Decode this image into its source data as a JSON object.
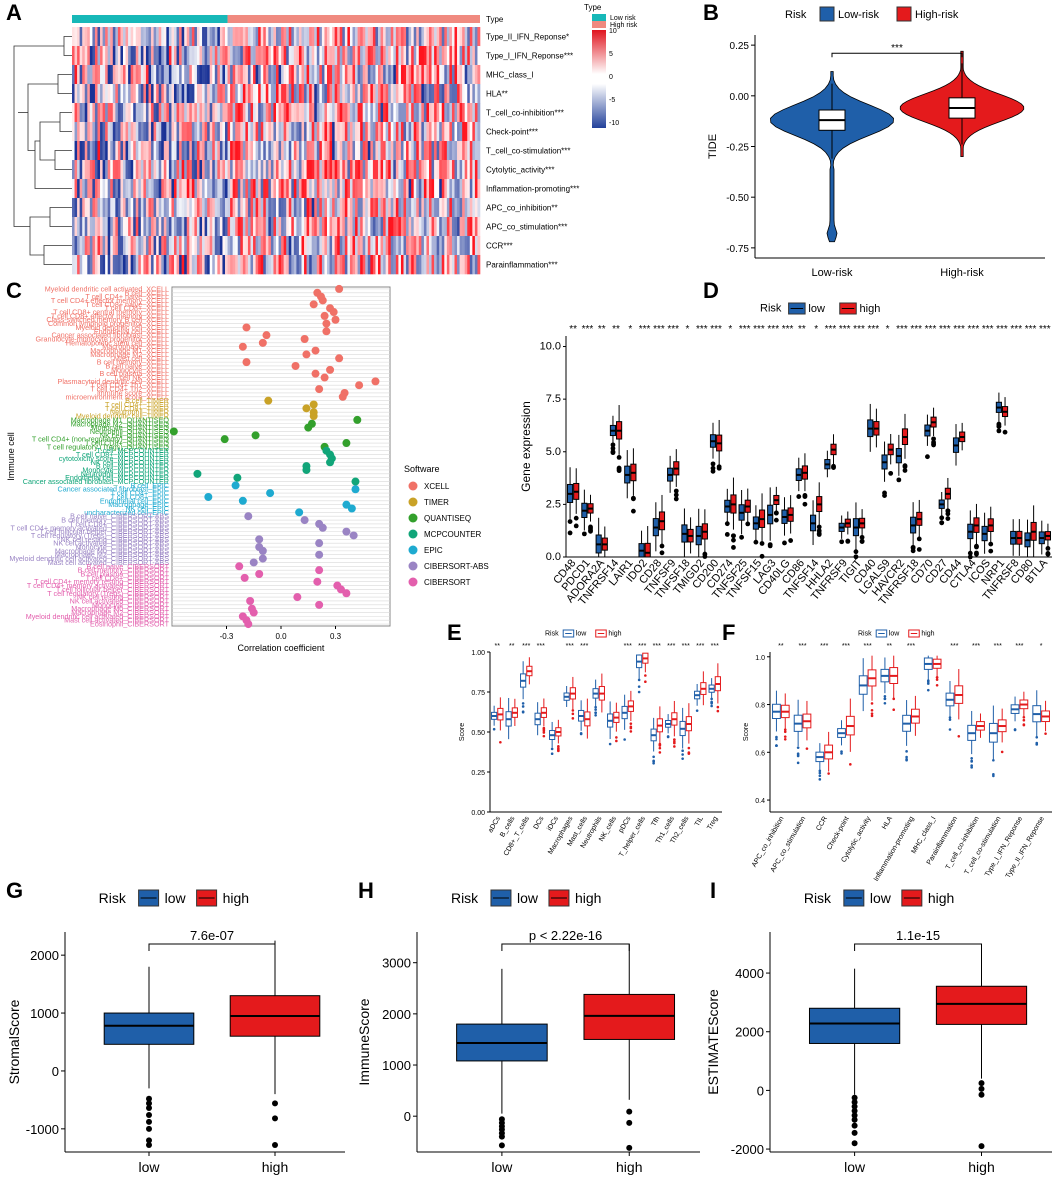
{
  "colors": {
    "low": "#1f5fa9",
    "high": "#e41a1c",
    "low_type": "#17b8b8",
    "high_type": "#f08a80",
    "xcell": "#f07167",
    "timer": "#c9a227",
    "quantiseq": "#33a02c",
    "mcpcounter": "#11a579",
    "epic": "#1eaad0",
    "cibersort_abs": "#9a84c4",
    "cibersort": "#e35fad"
  },
  "chart_data": [
    {
      "id": "A",
      "panel_label": "A",
      "type": "heatmap",
      "title": "",
      "annotation_label": "Type",
      "legend_title": "Type",
      "legend_entries": [
        "Low risk",
        "High risk"
      ],
      "colorbar_ticks": [
        "10",
        "5",
        "0",
        "-5",
        "-10"
      ],
      "colorbar_range": [
        -10,
        10
      ],
      "rows": [
        "Type_II_IFN_Reponse*",
        "Type_I_IFN_Reponse***",
        "MHC_class_I",
        "HLA**",
        "T_cell_co-inhibition***",
        "Check-point***",
        "T_cell_co-stimulation***",
        "Cytolytic_activity***",
        "Inflammation-promoting***",
        "APC_co_inhibition**",
        "APC_co_stimulation***",
        "CCR***",
        "Parainflammation***"
      ],
      "low_fraction": 0.38
    },
    {
      "id": "B",
      "panel_label": "B",
      "type": "violin",
      "legend_title": "Risk",
      "legend_entries": [
        "Low-risk",
        "High-risk"
      ],
      "categories": [
        "Low-risk",
        "High-risk"
      ],
      "ylabel": "TIDE",
      "ylim": [
        -0.8,
        0.3
      ],
      "yticks": [
        "0.25",
        "0.00",
        "-0.25",
        "-0.50",
        "-0.75"
      ],
      "significance": "***",
      "boxes": [
        {
          "name": "Low-risk",
          "q1": -0.17,
          "median": -0.12,
          "q3": -0.07,
          "wlo": -0.31,
          "whi": 0.06
        },
        {
          "name": "High-risk",
          "q1": -0.11,
          "median": -0.06,
          "q3": -0.01,
          "wlo": -0.24,
          "whi": 0.16
        }
      ]
    },
    {
      "id": "C",
      "panel_label": "C",
      "type": "scatter",
      "xlabel": "Correlation coefficient",
      "ylabel": "Immune cell",
      "xticks": [
        "-0.3",
        "0.0",
        "0.3"
      ],
      "xlim": [
        -0.6,
        0.6
      ],
      "legend_title": "Software",
      "software": [
        "XCELL",
        "TIMER",
        "QUANTISEQ",
        "MCPCOUNTER",
        "EPIC",
        "CIBERSORT-ABS",
        "CIBERSORT"
      ],
      "points": [
        [
          "Myeloid dendritic cell activated_XCELL",
          0,
          0.32
        ],
        [
          "B cell_XCELL",
          0,
          0.2
        ],
        [
          "T cell CD4+ naive_XCELL",
          0,
          0.22
        ],
        [
          "T cell CD4+ effector memory_XCELL",
          0,
          0.23
        ],
        [
          "T cell CD8+ naive_XCELL",
          0,
          0.18
        ],
        [
          "T cell CD8+_XCELL",
          0,
          0.27
        ],
        [
          "T cell CD8+ central memory_XCELL",
          0,
          0.29
        ],
        [
          "T cell CD8+ effector memory_XCELL",
          0,
          0.24
        ],
        [
          "Class-switched memory B cell_XCELL",
          0,
          0.3
        ],
        [
          "Common lymphoid progenitor_XCELL",
          0,
          0.25
        ],
        [
          "Myeloid dendritic cell_XCELL",
          0,
          -0.19
        ],
        [
          "Endothelial cell_XCELL",
          0,
          0.25
        ],
        [
          "Cancer associated fibroblast_XCELL",
          0,
          -0.08
        ],
        [
          "Granulocyte-monocyte progenitor_XCELL",
          0,
          0.13
        ],
        [
          "Hematopoietic stem cell_XCELL",
          0,
          -0.1
        ],
        [
          "Macrophage_XCELL",
          0,
          -0.21
        ],
        [
          "Macrophage M1_XCELL",
          0,
          0.19
        ],
        [
          "Macrophage M2_XCELL",
          0,
          0.14
        ],
        [
          "Mast cell_XCELL",
          0,
          0.32
        ],
        [
          "B cell memory_XCELL",
          0,
          -0.19
        ],
        [
          "B cell naive_XCELL",
          0,
          0.08
        ],
        [
          "Monocyte_XCELL",
          0,
          0.27
        ],
        [
          "B cell plasma_XCELL",
          0,
          0.19
        ],
        [
          "T cell NK_XCELL",
          0,
          0.24
        ],
        [
          "Plasmacytoid dendritic cell_XCELL",
          0,
          0.52
        ],
        [
          "T cell CD4+ Th1_XCELL",
          0,
          0.43
        ],
        [
          "T cell CD4+ Th2_XCELL",
          0,
          0.21
        ],
        [
          "immune score_XCELL",
          0,
          0.35
        ],
        [
          "microenvironment score_XCELL",
          0,
          0.34
        ],
        [
          "B cell_TIMER",
          1,
          -0.07
        ],
        [
          "T cell CD4+_TIMER",
          1,
          0.18
        ],
        [
          "T cell CD8+_TIMER",
          1,
          0.14
        ],
        [
          "Neutrophil_TIMER",
          1,
          0.18
        ],
        [
          "Myeloid dendritic cell_TIMER",
          1,
          0.18
        ],
        [
          "Macrophage M1_QUANTISEQ",
          2,
          0.42
        ],
        [
          "Macrophage M2_QUANTISEQ",
          2,
          0.17
        ],
        [
          "Monocyte_QUANTISEQ",
          2,
          0.15
        ],
        [
          "Neutrophil_QUANTISEQ",
          2,
          -0.59
        ],
        [
          "NK cell_QUANTISEQ",
          2,
          -0.14
        ],
        [
          "T cell CD4+ (non-regulatory)_QUANTISEQ",
          2,
          -0.31
        ],
        [
          "T cell CD8+_QUANTISEQ",
          2,
          0.36
        ],
        [
          "T cell regulatory (Tregs)_QUANTISEQ",
          2,
          0.24
        ],
        [
          "T cell_MCPCOUNTER",
          3,
          0.25
        ],
        [
          "T cell CD8+_MCPCOUNTER",
          3,
          0.27
        ],
        [
          "cytotoxicity score_MCPCOUNTER",
          3,
          0.28
        ],
        [
          "NK cell_MCPCOUNTER",
          3,
          0.27
        ],
        [
          "B cell_MCPCOUNTER",
          3,
          0.14
        ],
        [
          "Monocyte_MCPCOUNTER",
          3,
          0.14
        ],
        [
          "Neutrophil_MCPCOUNTER",
          3,
          -0.46
        ],
        [
          "Endothelial cell_MCPCOUNTER",
          3,
          -0.24
        ],
        [
          "Cancer associated fibroblast_MCPCOUNTER",
          3,
          0.41
        ],
        [
          "B cell_EPIC",
          4,
          -0.25
        ],
        [
          "Cancer associated fibroblast_EPIC",
          4,
          0.41
        ],
        [
          "T cell CD4+_EPIC",
          4,
          -0.06
        ],
        [
          "T cell CD8+_EPIC",
          4,
          -0.4
        ],
        [
          "Endothelial cell_EPIC",
          4,
          -0.21
        ],
        [
          "Macrophage_EPIC",
          4,
          0.36
        ],
        [
          "NK cell_EPIC",
          4,
          0.39
        ],
        [
          "uncharacterized cell_EPIC",
          4,
          0.1
        ],
        [
          "B cell naive_CIBERSORT-ABS",
          5,
          -0.18
        ],
        [
          "B cell memory_CIBERSORT-ABS",
          5,
          0.13
        ],
        [
          "T cell CD8+_CIBERSORT-ABS",
          5,
          0.21
        ],
        [
          "T cell CD4+ memory activated_CIBERSORT-ABS",
          5,
          0.23
        ],
        [
          "T cell follicular helper_CIBERSORT-ABS",
          5,
          0.36
        ],
        [
          "T cell regulatory (Tregs)_CIBERSORT-ABS",
          5,
          0.4
        ],
        [
          "NK cell resting_CIBERSORT-ABS",
          5,
          -0.12
        ],
        [
          "NK cell activated_CIBERSORT-ABS",
          5,
          0.21
        ],
        [
          "Monocyte_CIBERSORT-ABS",
          5,
          -0.12
        ],
        [
          "Macrophage M0_CIBERSORT-ABS",
          5,
          -0.1
        ],
        [
          "Macrophage M2_CIBERSORT-ABS",
          5,
          0.21
        ],
        [
          "Myeloid dendritic cell activated_CIBERSORT-ABS",
          5,
          -0.1
        ],
        [
          "Mast cell activated_CIBERSORT-ABS",
          5,
          -0.15
        ],
        [
          "B cell naive_CIBERSORT",
          6,
          -0.23
        ],
        [
          "B cell memory_CIBERSORT",
          6,
          0.21
        ],
        [
          "B cell plasma_CIBERSORT",
          6,
          -0.12
        ],
        [
          "T cell CD8+_CIBERSORT",
          6,
          -0.2
        ],
        [
          "T cell CD4+ memory resting_CIBERSORT",
          6,
          0.2
        ],
        [
          "T cell CD4+ memory activated_CIBERSORT",
          6,
          0.31
        ],
        [
          "T cell follicular helper_CIBERSORT",
          6,
          0.33
        ],
        [
          "T cell regulatory (Tregs)_CIBERSORT",
          6,
          0.36
        ],
        [
          "NK cell resting_CIBERSORT",
          6,
          0.09
        ],
        [
          "NK cell activated_CIBERSORT",
          6,
          -0.17
        ],
        [
          "Monocyte_CIBERSORT",
          6,
          0.21
        ],
        [
          "Macrophage M0_CIBERSORT",
          6,
          -0.16
        ],
        [
          "Macrophage M2_CIBERSORT",
          6,
          -0.15
        ],
        [
          "Myeloid dendritic cell activated_CIBERSORT",
          6,
          -0.21
        ],
        [
          "Mast cell activated_CIBERSORT",
          6,
          -0.19
        ],
        [
          "Eosinophil_CIBERSORT",
          6,
          -0.18
        ]
      ]
    },
    {
      "id": "D",
      "panel_label": "D",
      "type": "box",
      "legend_title": "Risk",
      "legend_entries": [
        "low",
        "high"
      ],
      "ylabel": "Gene expression",
      "ylim": [
        0,
        10.5
      ],
      "yticks": [
        "0.0",
        "2.5",
        "5.0",
        "7.5",
        "10.0"
      ],
      "categories": [
        "CD48",
        "PDCD1",
        "ADORA2A",
        "TNFRSF14",
        "LAIR1",
        "IDO2",
        "CD28",
        "TNFSF9",
        "TNFSF18",
        "TMIGD2",
        "CD200",
        "CD274",
        "TNFSF25",
        "TNFSF15",
        "LAG3",
        "CD40LG",
        "CD86",
        "TNFSF14",
        "HHLA2",
        "TNFRSF9",
        "TIGIT",
        "CD40",
        "LGALS9",
        "HAVCR2",
        "TNFRSF18",
        "CD70",
        "CD27",
        "CD44",
        "CTLA4",
        "ICOS",
        "NRP1",
        "TNFRSF8",
        "CD80",
        "BTLA"
      ],
      "significance": [
        "**",
        "***",
        "**",
        "**",
        "*",
        "***",
        "***",
        "***",
        "*",
        "***",
        "***",
        "*",
        "***",
        "***",
        "***",
        "***",
        "**",
        "*",
        "***",
        "***",
        "***",
        "***",
        "*",
        "***",
        "***",
        "***",
        "***",
        "***",
        "***",
        "***",
        "***",
        "***",
        "***",
        "***"
      ],
      "series": [
        {
          "name": "low",
          "median": [
            3.0,
            2.2,
            0.6,
            6.0,
            3.9,
            0.3,
            1.4,
            3.9,
            1.1,
            1.0,
            5.5,
            2.4,
            2.1,
            1.6,
            2.0,
            1.9,
            3.9,
            1.6,
            4.4,
            1.4,
            1.4,
            6.1,
            4.5,
            4.8,
            1.5,
            6.0,
            2.5,
            5.3,
            1.2,
            1.1,
            7.1,
            0.9,
            0.8,
            0.9
          ]
        },
        {
          "name": "high",
          "median": [
            3.1,
            2.3,
            0.6,
            6.0,
            4.0,
            0.2,
            1.7,
            4.2,
            1.0,
            1.2,
            5.4,
            2.5,
            2.4,
            1.8,
            2.7,
            2.0,
            4.0,
            2.5,
            5.1,
            1.6,
            1.6,
            6.1,
            5.1,
            5.7,
            1.8,
            6.4,
            3.0,
            5.7,
            1.5,
            1.5,
            6.9,
            0.9,
            1.2,
            1.0
          ]
        }
      ]
    },
    {
      "id": "E",
      "panel_label": "E",
      "type": "box",
      "legend_title": "Risk",
      "legend_entries": [
        "low",
        "high"
      ],
      "ylabel": "Score",
      "ylim": [
        0,
        1
      ],
      "yticks": [
        "1.00",
        "0.75",
        "0.50",
        "0.25",
        "0.00"
      ],
      "categories": [
        "aDCs",
        "B_cells",
        "CD8+_T_cells",
        "DCs",
        "iDCs",
        "Macrophages",
        "Mast_cells",
        "Neutrophils",
        "NK_cells",
        "pDCs",
        "T_helper_cells",
        "Tfh",
        "Th1_cells",
        "Th2_cells",
        "TIL",
        "Treg"
      ],
      "significance": [
        "**",
        "**",
        "***",
        "***",
        "",
        "***",
        "***",
        "",
        "",
        "***",
        "***",
        "***",
        "***",
        "***",
        "***",
        "***"
      ],
      "series": [
        {
          "name": "low",
          "median": [
            0.6,
            0.58,
            0.82,
            0.58,
            0.48,
            0.72,
            0.6,
            0.74,
            0.57,
            0.62,
            0.94,
            0.48,
            0.55,
            0.52,
            0.73,
            0.77
          ]
        },
        {
          "name": "high",
          "median": [
            0.61,
            0.62,
            0.88,
            0.62,
            0.5,
            0.74,
            0.58,
            0.74,
            0.59,
            0.66,
            0.96,
            0.54,
            0.58,
            0.55,
            0.77,
            0.8
          ]
        }
      ]
    },
    {
      "id": "F",
      "panel_label": "F",
      "type": "box",
      "legend_title": "Risk",
      "legend_entries": [
        "low",
        "high"
      ],
      "ylabel": "Score",
      "ylim": [
        0.35,
        1.02
      ],
      "yticks": [
        "1.0",
        "0.8",
        "0.6",
        "0.4"
      ],
      "categories": [
        "APC_co_inhibition",
        "APC_co_stimulation",
        "CCR",
        "Check-point",
        "Cytolytic_activity",
        "HLA",
        "Inflammation-promoting",
        "MHC_class_I",
        "Parainflammation",
        "T_cell_co-inhibition",
        "T_cell_co-stimulation",
        "Type_I_IFN_Reponse",
        "Type_II_IFN_Reponse"
      ],
      "significance": [
        "**",
        "***",
        "***",
        "***",
        "***",
        "**",
        "***",
        "",
        "***",
        "***",
        "***",
        "***",
        "*"
      ],
      "series": [
        {
          "name": "low",
          "median": [
            0.77,
            0.72,
            0.58,
            0.68,
            0.88,
            0.92,
            0.72,
            0.97,
            0.82,
            0.68,
            0.68,
            0.78,
            0.76
          ]
        },
        {
          "name": "high",
          "median": [
            0.77,
            0.73,
            0.6,
            0.71,
            0.91,
            0.92,
            0.75,
            0.97,
            0.84,
            0.71,
            0.71,
            0.8,
            0.75
          ]
        }
      ]
    },
    {
      "id": "G",
      "panel_label": "G",
      "type": "box",
      "legend_title": "Risk",
      "legend_entries": [
        "low",
        "high"
      ],
      "categories": [
        "low",
        "high"
      ],
      "ylabel": "StromalScore",
      "ylim": [
        -1400,
        2400
      ],
      "yticks": [
        "2000",
        "1000",
        "0",
        "-1000"
      ],
      "pvalue": "7.6e-07",
      "boxes": [
        {
          "name": "low",
          "q1": 460,
          "median": 780,
          "q3": 1000,
          "wlo": -300,
          "whi": 1800,
          "outliers": [
            -480,
            -560,
            -640,
            -760,
            -880,
            -1000,
            -1200,
            -1280
          ]
        },
        {
          "name": "high",
          "q1": 600,
          "median": 950,
          "q3": 1300,
          "wlo": -400,
          "whi": 2250,
          "outliers": [
            -560,
            -820,
            -1280
          ]
        }
      ]
    },
    {
      "id": "H",
      "panel_label": "H",
      "type": "box",
      "legend_title": "Risk",
      "legend_entries": [
        "low",
        "high"
      ],
      "categories": [
        "low",
        "high"
      ],
      "ylabel": "ImmuneScore",
      "ylim": [
        -700,
        3600
      ],
      "yticks": [
        "3000",
        "2000",
        "1000",
        "0"
      ],
      "pvalue": "p < 2.22e-16",
      "boxes": [
        {
          "name": "low",
          "q1": 1080,
          "median": 1430,
          "q3": 1800,
          "wlo": 50,
          "whi": 2880,
          "outliers": [
            -60,
            -130,
            -200,
            -260,
            -330,
            -400,
            -570
          ]
        },
        {
          "name": "high",
          "q1": 1500,
          "median": 1960,
          "q3": 2380,
          "wlo": 320,
          "whi": 3360,
          "outliers": [
            90,
            -130,
            -620
          ]
        }
      ]
    },
    {
      "id": "I",
      "panel_label": "I",
      "type": "box",
      "legend_title": "Risk",
      "legend_entries": [
        "low",
        "high"
      ],
      "categories": [
        "low",
        "high"
      ],
      "ylabel": "ESTIMATEScore",
      "ylim": [
        -2100,
        5400
      ],
      "yticks": [
        "4000",
        "2000",
        "0",
        "-2000"
      ],
      "pvalue": "1.1e-15",
      "boxes": [
        {
          "name": "low",
          "q1": 1600,
          "median": 2280,
          "q3": 2800,
          "wlo": -150,
          "whi": 4150,
          "outliers": [
            -250,
            -400,
            -550,
            -700,
            -850,
            -1000,
            -1200,
            -1450,
            -1800
          ]
        },
        {
          "name": "high",
          "q1": 2250,
          "median": 2950,
          "q3": 3550,
          "wlo": 400,
          "whi": 5000,
          "outliers": [
            250,
            50,
            -150,
            -1900
          ]
        }
      ]
    }
  ]
}
